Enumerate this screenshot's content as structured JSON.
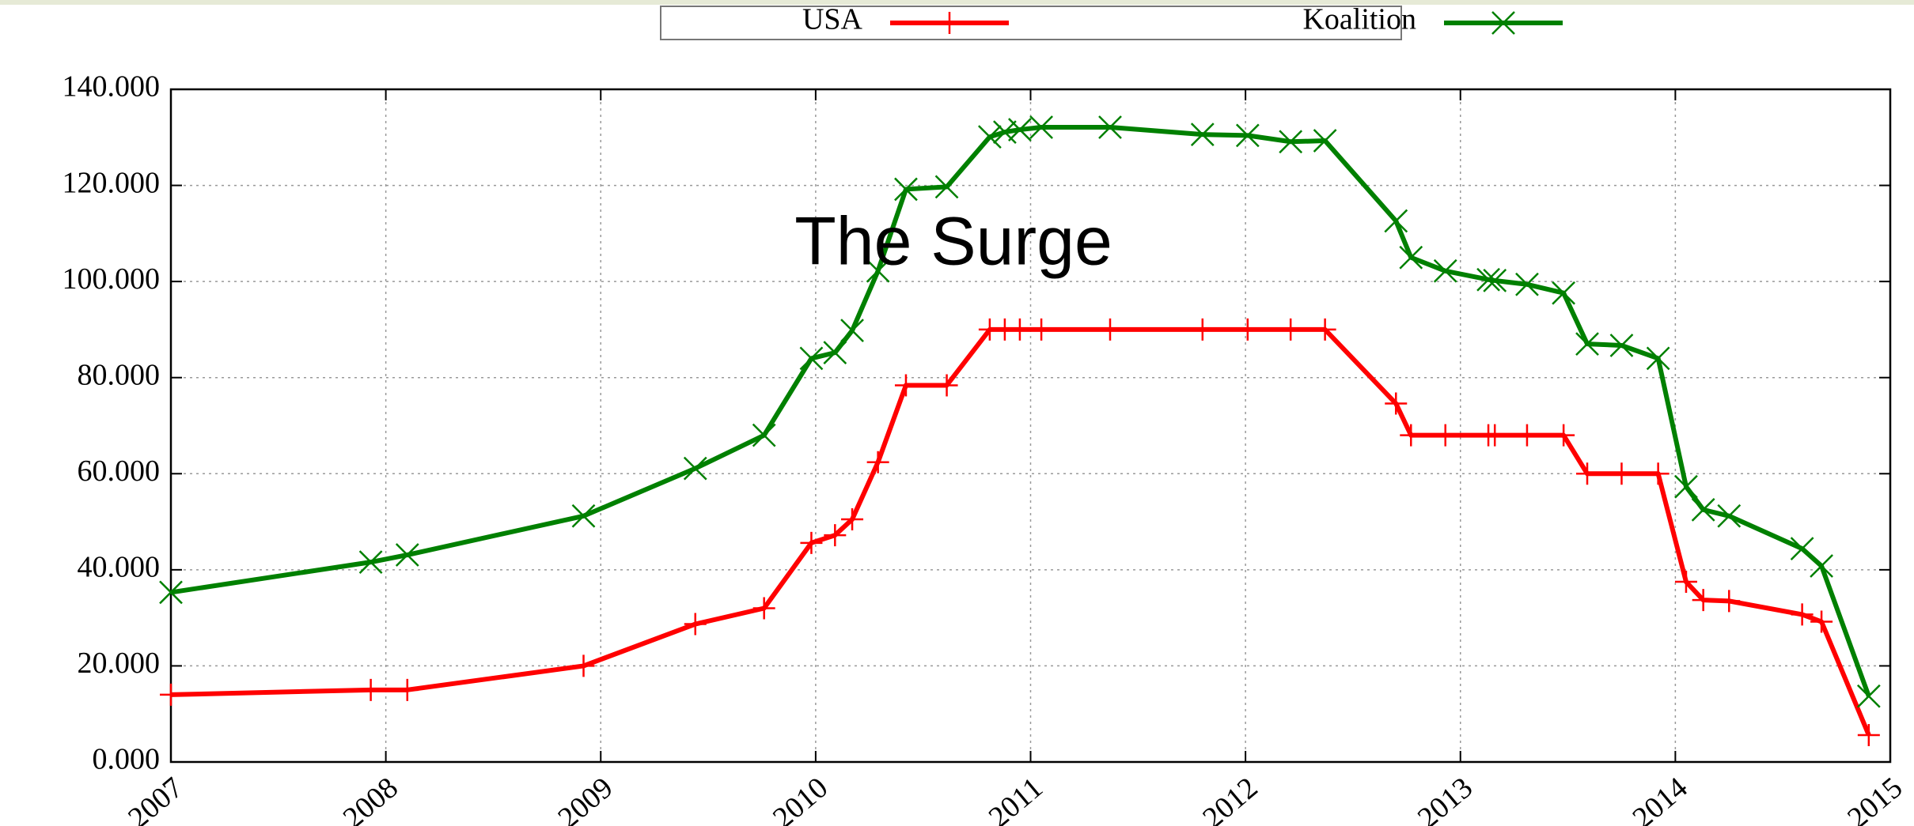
{
  "chart_data": {
    "type": "line",
    "annotation": "The Surge",
    "x": [
      2007.0,
      2007.93,
      2008.1,
      2008.92,
      2009.44,
      2009.76,
      2009.98,
      2010.09,
      2010.17,
      2010.29,
      2010.42,
      2010.61,
      2010.81,
      2010.88,
      2010.95,
      2011.05,
      2011.37,
      2011.8,
      2012.01,
      2012.21,
      2012.37,
      2012.7,
      2012.77,
      2012.93,
      2013.13,
      2013.16,
      2013.31,
      2013.48,
      2013.59,
      2013.75,
      2013.92,
      2014.05,
      2014.13,
      2014.25,
      2014.59,
      2014.68,
      2014.9
    ],
    "series": [
      {
        "name": "USA",
        "color": "#ff0000",
        "marker": "plus",
        "values": [
          14000,
          15000,
          15000,
          20000,
          28700,
          32000,
          45600,
          47200,
          50500,
          62400,
          78400,
          78400,
          90000,
          90000,
          90000,
          90000,
          90000,
          90000,
          90000,
          90000,
          90000,
          74600,
          68000,
          68000,
          68000,
          68000,
          68000,
          68000,
          60000,
          60000,
          60000,
          37500,
          33700,
          33500,
          30700,
          29200,
          5600
        ]
      },
      {
        "name": "Koalition",
        "color": "#008000",
        "marker": "cross",
        "values": [
          35300,
          41600,
          43100,
          51200,
          61100,
          68000,
          84000,
          85200,
          89800,
          102200,
          119200,
          119700,
          130100,
          131100,
          131600,
          132100,
          132100,
          130600,
          130400,
          129100,
          129300,
          112600,
          105000,
          102200,
          100400,
          100200,
          99400,
          97600,
          87000,
          86700,
          84000,
          57300,
          52500,
          51200,
          44400,
          40800,
          13700
        ]
      }
    ],
    "xlim": [
      2007,
      2015
    ],
    "xticks": [
      2007,
      2008,
      2009,
      2010,
      2011,
      2012,
      2013,
      2014,
      2015
    ],
    "ylim": [
      0,
      140000
    ],
    "yticks": [
      {
        "value": 0,
        "label": "0.000"
      },
      {
        "value": 20000,
        "label": "20.000"
      },
      {
        "value": 40000,
        "label": "40.000"
      },
      {
        "value": 60000,
        "label": "60.000"
      },
      {
        "value": 80000,
        "label": "80.000"
      },
      {
        "value": 100000,
        "label": "100.000"
      },
      {
        "value": 120000,
        "label": "120.000"
      },
      {
        "value": 140000,
        "label": "140.000"
      }
    ],
    "grid": true,
    "legend": "top"
  }
}
